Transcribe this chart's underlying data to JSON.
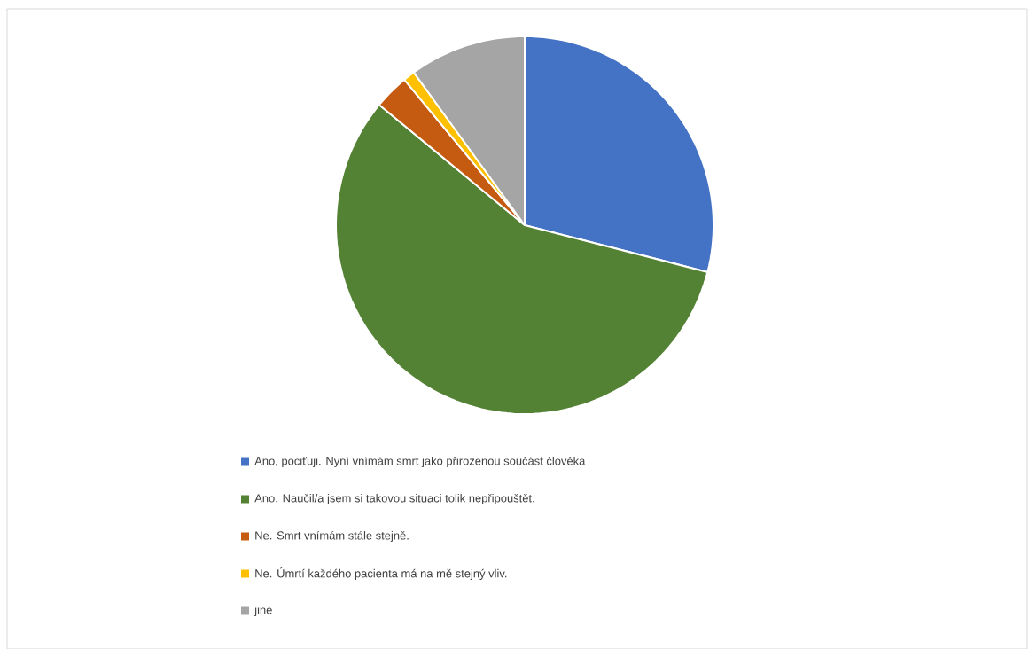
{
  "chart_data": {
    "type": "pie",
    "categories": [
      "Ano, pociťuji. Nyní vnímám smrt jako přirozenou součást člověka",
      "Ano. Naučil/a jsem si takovou situaci tolik nepřipouštět.",
      "Ne. Smrt vnímám stále stejně.",
      "Ne. Úmrtí každého pacienta má na mě stejný vliv.",
      "jiné"
    ],
    "values": [
      29,
      57,
      3,
      1,
      10
    ],
    "colors": [
      "#4472c4",
      "#548235",
      "#c55a11",
      "#ffc000",
      "#a5a5a5"
    ],
    "legend": "bottom"
  }
}
